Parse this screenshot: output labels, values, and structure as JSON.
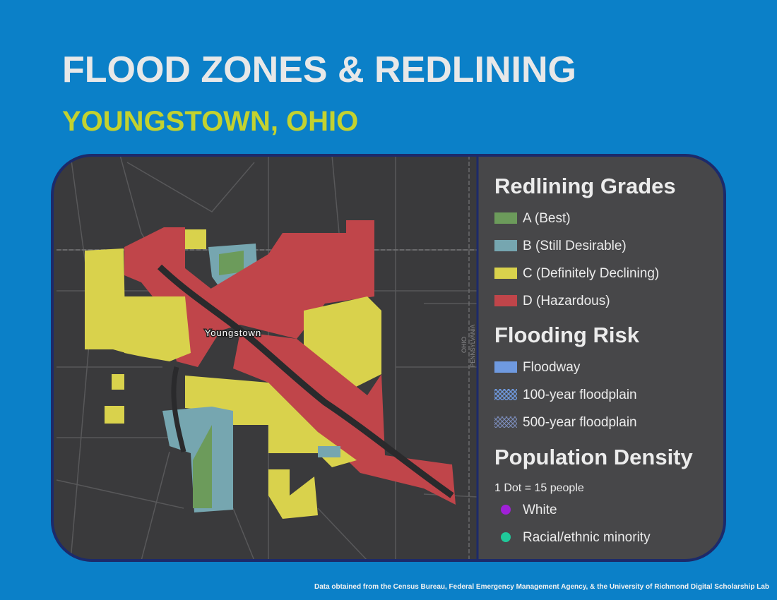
{
  "header": {
    "title": "FLOOD ZONES & REDLINING",
    "subtitle": "YOUNGSTOWN, OHIO"
  },
  "map": {
    "city_label": "Youngstown",
    "state_labels": [
      "OHIO",
      "PENNSYLVANIA"
    ]
  },
  "legend": {
    "sections": [
      {
        "heading": "Redlining Grades",
        "items": [
          {
            "label": "A (Best)",
            "color": "#6c9b5b"
          },
          {
            "label": "B (Still Desirable)",
            "color": "#76a6b0"
          },
          {
            "label": "C (Definitely Declining)",
            "color": "#d9d24c"
          },
          {
            "label": "D (Hazardous)",
            "color": "#c0454a"
          }
        ]
      },
      {
        "heading": "Flooding Risk",
        "items": [
          {
            "label": "Floodway",
            "color": "#6f9ae0"
          },
          {
            "label": "100-year floodplain",
            "color": "#6f9ae0"
          },
          {
            "label": "500-year floodplain",
            "color": "#7d8fbf"
          }
        ]
      },
      {
        "heading": "Population Density",
        "note": "1 Dot = 15 people",
        "items": [
          {
            "label": "White",
            "color": "#a020d8"
          },
          {
            "label": "Racial/ethnic minority",
            "color": "#20c99a"
          }
        ]
      }
    ]
  },
  "footer": {
    "source": "Data obtained from the Census Bureau, Federal Emergency Management Agency, & the University of Richmond Digital Scholarship Lab"
  }
}
